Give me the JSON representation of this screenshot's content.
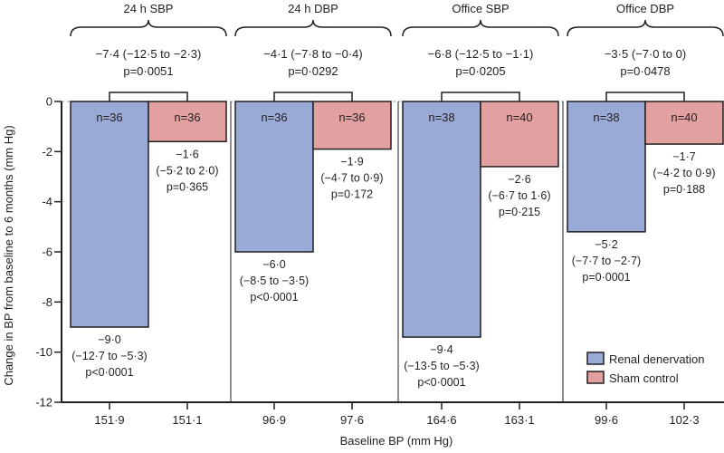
{
  "chart_data": {
    "type": "bar",
    "title": "",
    "xlabel": "Baseline BP (mm Hg)",
    "ylabel": "Change in BP from baseline to 6 months (mm Hg)",
    "ylim": [
      -12,
      0
    ],
    "yticks": [
      0,
      -2,
      -4,
      -6,
      -8,
      -10,
      -12
    ],
    "ytick_labels": [
      "0",
      "-2",
      "-4",
      "-6",
      "-8",
      "-10",
      "-12"
    ],
    "grid": false,
    "legend_position": "bottom-right",
    "series": [
      {
        "name": "Renal denervation",
        "color": "#9aaad6"
      },
      {
        "name": "Sham control",
        "color": "#e3a0a0"
      }
    ],
    "groups": [
      {
        "label": "24 h SBP",
        "difference": "−7·4 (−12·5 to −2·3)",
        "difference_p": "p=0·0051",
        "bars": [
          {
            "series": "Renal denervation",
            "value": -9.0,
            "n": "n=36",
            "value_label": "−9·0",
            "ci": "(−12·7 to −5·3)",
            "p": "p<0·0001",
            "baseline": "151·9"
          },
          {
            "series": "Sham control",
            "value": -1.6,
            "n": "n=36",
            "value_label": "−1·6",
            "ci": "(−5·2 to 2·0)",
            "p": "p=0·365",
            "baseline": "151·1"
          }
        ]
      },
      {
        "label": "24 h DBP",
        "difference": "−4·1 (−7·8 to −0·4)",
        "difference_p": "p=0·0292",
        "bars": [
          {
            "series": "Renal denervation",
            "value": -6.0,
            "n": "n=36",
            "value_label": "−6·0",
            "ci": "(−8·5 to −3·5)",
            "p": "p<0·0001",
            "baseline": "96·9"
          },
          {
            "series": "Sham control",
            "value": -1.9,
            "n": "n=36",
            "value_label": "−1·9",
            "ci": "(−4·7 to 0·9)",
            "p": "p=0·172",
            "baseline": "97·6"
          }
        ]
      },
      {
        "label": "Office SBP",
        "difference": "−6·8 (−12·5 to −1·1)",
        "difference_p": "p=0·0205",
        "bars": [
          {
            "series": "Renal denervation",
            "value": -9.4,
            "n": "n=38",
            "value_label": "−9·4",
            "ci": "(−13·5 to −5·3)",
            "p": "p<0·0001",
            "baseline": "164·6"
          },
          {
            "series": "Sham control",
            "value": -2.6,
            "n": "n=40",
            "value_label": "−2·6",
            "ci": "(−6·7 to 1·6)",
            "p": "p=0·215",
            "baseline": "163·1"
          }
        ]
      },
      {
        "label": "Office DBP",
        "difference": "−3·5 (−7·0 to 0)",
        "difference_p": "p=0·0478",
        "bars": [
          {
            "series": "Renal denervation",
            "value": -5.2,
            "n": "n=38",
            "value_label": "−5·2",
            "ci": "(−7·7 to −2·7)",
            "p": "p=0·0001",
            "baseline": "99·6"
          },
          {
            "series": "Sham control",
            "value": -1.7,
            "n": "n=40",
            "value_label": "−1·7",
            "ci": "(−4·2 to 0·9)",
            "p": "p=0·188",
            "baseline": "102·3"
          }
        ]
      }
    ]
  }
}
